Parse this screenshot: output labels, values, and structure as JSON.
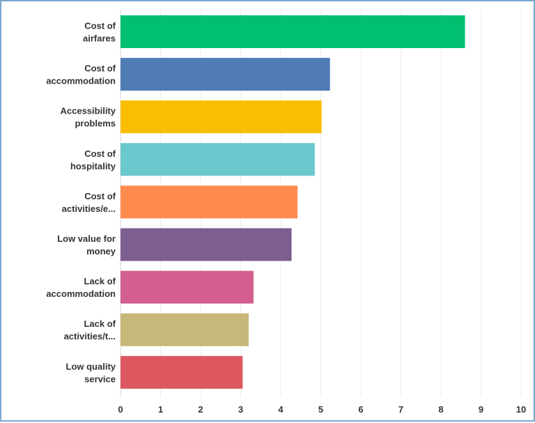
{
  "chart_data": {
    "type": "bar",
    "orientation": "horizontal",
    "categories": [
      [
        "Cost of",
        "airfares"
      ],
      [
        "Cost of",
        "accommodation"
      ],
      [
        "Accessibility",
        "problems"
      ],
      [
        "Cost of",
        "hospitality"
      ],
      [
        "Cost of",
        "activities/e..."
      ],
      [
        "Low value for",
        "money"
      ],
      [
        "Lack of",
        "accommodation"
      ],
      [
        "Lack of",
        "activities/t..."
      ],
      [
        "Low quality",
        "service"
      ]
    ],
    "values": [
      8.6,
      5.23,
      5.02,
      4.85,
      4.42,
      4.27,
      3.32,
      3.2,
      3.05
    ],
    "colors": [
      "#00bf6f",
      "#507cb6",
      "#f9be00",
      "#6bc8cd",
      "#ff8b4f",
      "#7d5e90",
      "#d25f90",
      "#c7b879",
      "#dd5860"
    ],
    "xlim": [
      0,
      10
    ],
    "xticks": [
      "0",
      "1",
      "2",
      "3",
      "4",
      "5",
      "6",
      "7",
      "8",
      "9",
      "10"
    ],
    "grid": true
  }
}
